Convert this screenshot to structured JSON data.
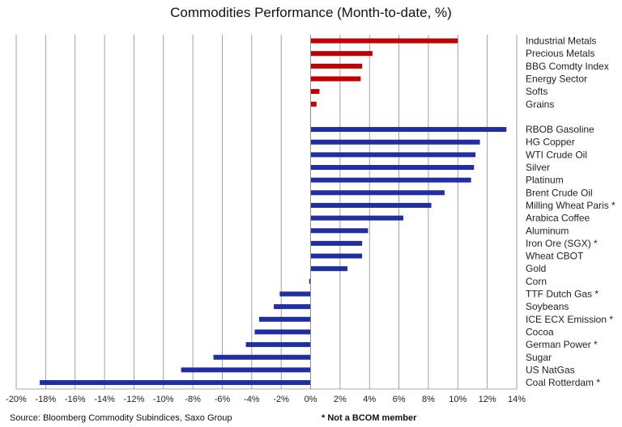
{
  "chart_data": {
    "type": "bar",
    "orientation": "horizontal",
    "title": "Commodities Performance (Month-to-date, %)",
    "xlim": [
      -20,
      14
    ],
    "x_ticks": [
      "-20%",
      "-18%",
      "-16%",
      "-14%",
      "-12%",
      "-10%",
      "-8%",
      "-6%",
      "-4%",
      "-2%",
      "0%",
      "2%",
      "4%",
      "6%",
      "8%",
      "10%",
      "12%",
      "14%"
    ],
    "grid": "vertical",
    "colors": {
      "indices": "#c00000",
      "commodities": "#1f2f9f"
    },
    "series": [
      {
        "group": "indices",
        "categories": [
          "Industrial Metals",
          "Precious Metals",
          "BBG Comdty Index",
          "Energy Sector",
          "Softs",
          "Grains"
        ],
        "values": [
          10.0,
          4.2,
          3.5,
          3.4,
          0.6,
          0.4
        ]
      },
      {
        "group": "commodities",
        "categories": [
          "RBOB Gasoline",
          "HG Copper",
          "WTI Crude Oil",
          "Silver",
          "Platinum",
          "Brent Crude Oil",
          "Milling Wheat Paris *",
          "Arabica Coffee",
          "Aluminum",
          "Iron Ore (SGX) *",
          "Wheat CBOT",
          "Gold",
          "Corn",
          "TTF Dutch Gas *",
          "Soybeans",
          "ICE ECX Emission *",
          "Cocoa",
          "German Power *",
          "Sugar",
          "US NatGas",
          "Coal Rotterdam *"
        ],
        "values": [
          13.3,
          11.5,
          11.2,
          11.1,
          10.9,
          9.1,
          8.2,
          6.3,
          3.9,
          3.5,
          3.5,
          2.5,
          -0.1,
          -2.1,
          -2.5,
          -3.5,
          -3.8,
          -4.4,
          -6.6,
          -8.8,
          -18.4
        ]
      }
    ]
  },
  "footer": {
    "source": "Source: Bloomberg Commodity Subindices, Saxo Group",
    "note": "* Not a BCOM member"
  }
}
